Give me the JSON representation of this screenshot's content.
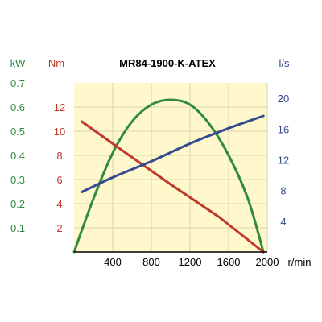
{
  "chart_data": {
    "type": "line",
    "title": "MR84-1900-K-ATEX",
    "colors": {
      "plot_background": "#fff8cc",
      "power": "#2f8a3e",
      "torque": "#c0392b",
      "flow": "#344a8f",
      "x_axis": "#000000"
    },
    "axes": {
      "x": {
        "unit": "r/min",
        "range": [
          0,
          2000
        ],
        "ticks": [
          400,
          800,
          1200,
          1600,
          2000
        ],
        "tick_labels": [
          "400",
          "800",
          "1200",
          "1600",
          "2000"
        ]
      },
      "power": {
        "unit": "kW",
        "range": [
          0,
          0.7
        ],
        "ticks": [
          0.1,
          0.2,
          0.3,
          0.4,
          0.5,
          0.6,
          0.7
        ],
        "tick_labels": [
          "0.1",
          "0.2",
          "0.3",
          "0.4",
          "0.5",
          "0.6",
          "0.7"
        ]
      },
      "torque": {
        "unit": "Nm",
        "range": [
          0,
          14
        ],
        "ticks": [
          2,
          4,
          6,
          8,
          10,
          12
        ],
        "tick_labels": [
          "2",
          "4",
          "6",
          "8",
          "10",
          "12"
        ]
      },
      "flow": {
        "unit": "l/s",
        "range": [
          0,
          22
        ],
        "ticks": [
          4,
          8,
          12,
          16,
          20
        ],
        "tick_labels": [
          "4",
          "8",
          "12",
          "16",
          "20"
        ]
      }
    },
    "grid": true,
    "series": [
      {
        "axis": "power",
        "color": "#2f8a3e",
        "x": [
          0,
          200,
          400,
          600,
          800,
          1000,
          1200,
          1400,
          1600,
          1800,
          1960
        ],
        "values": [
          0,
          0.22,
          0.41,
          0.54,
          0.61,
          0.63,
          0.61,
          0.53,
          0.4,
          0.22,
          0
        ]
      },
      {
        "axis": "torque",
        "color": "#c0392b",
        "x": [
          80,
          500,
          1000,
          1500,
          1960
        ],
        "values": [
          10.8,
          8.4,
          5.6,
          2.9,
          0
        ]
      },
      {
        "axis": "flow",
        "color": "#344a8f",
        "x": [
          80,
          400,
          800,
          1200,
          1600,
          1960
        ],
        "values": [
          7.8,
          9.7,
          11.8,
          14.1,
          16.1,
          17.7
        ]
      }
    ]
  }
}
